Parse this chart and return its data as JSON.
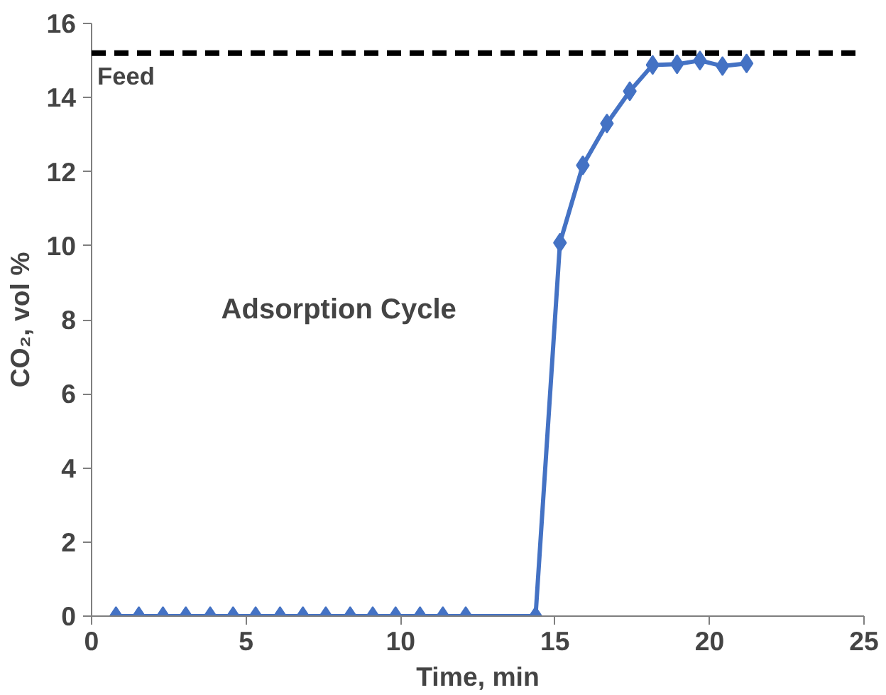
{
  "chart_data": {
    "type": "line",
    "xlabel": "Time, min",
    "ylabel": "CO₂, vol %",
    "xlim": [
      0,
      25
    ],
    "xticks": [
      0,
      5,
      10,
      15,
      20,
      25
    ],
    "ylim": [
      0,
      16
    ],
    "yticks": [
      0,
      2,
      4,
      6,
      8,
      10,
      12,
      14,
      16
    ],
    "grid": false,
    "marker": "diamond",
    "line_style": "solid",
    "series": [
      {
        "color": "#4472c4",
        "x": [
          0.79,
          1.53,
          2.31,
          3.05,
          3.84,
          4.58,
          5.31,
          6.1,
          6.84,
          7.58,
          8.37,
          9.1,
          9.84,
          10.63,
          11.37,
          12.11,
          14.37,
          15.16,
          15.9,
          16.68,
          17.42,
          18.16,
          18.95,
          19.69,
          20.42,
          21.2
        ],
        "values": [
          0,
          0,
          0,
          0,
          0,
          0,
          0,
          0,
          0,
          0,
          0,
          0,
          0,
          0,
          0,
          0,
          0,
          10.08,
          12.17,
          13.3,
          14.17,
          14.88,
          14.9,
          15.0,
          14.85,
          14.92
        ]
      }
    ],
    "ref_lines": [
      {
        "axis": "y",
        "value": 15.2,
        "label": "Feed",
        "color": "#000000",
        "line_style": "dashed"
      }
    ],
    "annotations": [
      "Adsorption Cycle"
    ]
  }
}
